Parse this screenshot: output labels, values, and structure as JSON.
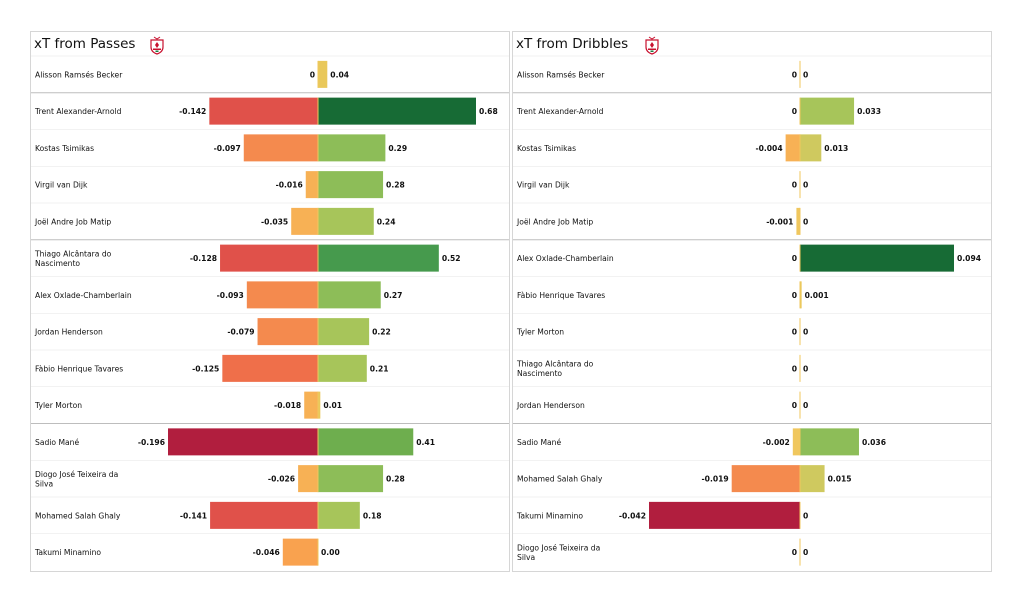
{
  "colors": {
    "neg_scale": [
      "#f0c75e",
      "#f7b155",
      "#f9a24f",
      "#f48a4e",
      "#ef6f4a",
      "#e0514a",
      "#c42a45",
      "#b11e3e"
    ],
    "pos_scale": [
      "#e9c85a",
      "#cfc95f",
      "#a7c55a",
      "#8dbd58",
      "#6eae4e",
      "#469a4d",
      "#2e8b47",
      "#176b35"
    ],
    "separator": "#bdbdbd",
    "row_line": "#e6e6e6"
  },
  "chart_data": [
    {
      "type": "bar",
      "title": "xT from Passes",
      "crest_icon": "liverpool-crest-icon",
      "orientation": "horizontal diverging",
      "neg_max": 0.196,
      "pos_max": 0.68,
      "group_sizes": [
        1,
        4,
        5,
        4
      ],
      "players": [
        {
          "name": "Alisson Ramsés Becker",
          "neg": 0,
          "pos": 0.04,
          "neg_label": "0",
          "pos_label": "0.04"
        },
        {
          "name": "Trent Alexander-Arnold",
          "neg": -0.142,
          "pos": 0.68,
          "neg_label": "-0.142",
          "pos_label": "0.68"
        },
        {
          "name": "Kostas Tsimikas",
          "neg": -0.097,
          "pos": 0.29,
          "neg_label": "-0.097",
          "pos_label": "0.29"
        },
        {
          "name": "Virgil van Dijk",
          "neg": -0.016,
          "pos": 0.28,
          "neg_label": "-0.016",
          "pos_label": "0.28"
        },
        {
          "name": "Joël Andre Job Matip",
          "neg": -0.035,
          "pos": 0.24,
          "neg_label": "-0.035",
          "pos_label": "0.24"
        },
        {
          "name": "Thiago Alcântara do Nascimento",
          "neg": -0.128,
          "pos": 0.52,
          "neg_label": "-0.128",
          "pos_label": "0.52"
        },
        {
          "name": "Alex Oxlade-Chamberlain",
          "neg": -0.093,
          "pos": 0.27,
          "neg_label": "-0.093",
          "pos_label": "0.27"
        },
        {
          "name": "Jordan Henderson",
          "neg": -0.079,
          "pos": 0.22,
          "neg_label": "-0.079",
          "pos_label": "0.22"
        },
        {
          "name": "Fàbio Henrique Tavares",
          "neg": -0.125,
          "pos": 0.21,
          "neg_label": "-0.125",
          "pos_label": "0.21"
        },
        {
          "name": "Tyler Morton",
          "neg": -0.018,
          "pos": 0.01,
          "neg_label": "-0.018",
          "pos_label": "0.01"
        },
        {
          "name": "Sadio Mané",
          "neg": -0.196,
          "pos": 0.41,
          "neg_label": "-0.196",
          "pos_label": "0.41"
        },
        {
          "name": "Diogo José Teixeira da Silva",
          "neg": -0.026,
          "pos": 0.28,
          "neg_label": "-0.026",
          "pos_label": "0.28"
        },
        {
          "name": "Mohamed  Salah Ghaly",
          "neg": -0.141,
          "pos": 0.18,
          "neg_label": "-0.141",
          "pos_label": "0.18"
        },
        {
          "name": "Takumi Minamino",
          "neg": -0.046,
          "pos": 0.0,
          "neg_label": "-0.046",
          "pos_label": "0.00"
        }
      ]
    },
    {
      "type": "bar",
      "title": "xT from Dribbles",
      "crest_icon": "liverpool-crest-icon",
      "orientation": "horizontal diverging",
      "neg_max": 0.042,
      "pos_max": 0.094,
      "group_sizes": [
        1,
        4,
        5,
        4
      ],
      "players": [
        {
          "name": "Alisson Ramsés Becker",
          "neg": 0,
          "pos": 0,
          "neg_label": "0",
          "pos_label": "0"
        },
        {
          "name": "Trent Alexander-Arnold",
          "neg": 0,
          "pos": 0.033,
          "neg_label": "0",
          "pos_label": "0.033"
        },
        {
          "name": "Kostas Tsimikas",
          "neg": -0.004,
          "pos": 0.013,
          "neg_label": "-0.004",
          "pos_label": "0.013"
        },
        {
          "name": "Virgil van Dijk",
          "neg": 0,
          "pos": 0,
          "neg_label": "0",
          "pos_label": "0"
        },
        {
          "name": "Joël Andre Job Matip",
          "neg": -0.001,
          "pos": 0,
          "neg_label": "-0.001",
          "pos_label": "0"
        },
        {
          "name": "Alex Oxlade-Chamberlain",
          "neg": 0,
          "pos": 0.094,
          "neg_label": "0",
          "pos_label": "0.094"
        },
        {
          "name": "Fàbio Henrique Tavares",
          "neg": 0,
          "pos": 0.001,
          "neg_label": "0",
          "pos_label": "0.001"
        },
        {
          "name": "Tyler Morton",
          "neg": 0,
          "pos": 0,
          "neg_label": "0",
          "pos_label": "0"
        },
        {
          "name": "Thiago Alcântara do Nascimento",
          "neg": 0,
          "pos": 0,
          "neg_label": "0",
          "pos_label": "0"
        },
        {
          "name": "Jordan Henderson",
          "neg": 0,
          "pos": 0,
          "neg_label": "0",
          "pos_label": "0"
        },
        {
          "name": "Sadio Mané",
          "neg": -0.002,
          "pos": 0.036,
          "neg_label": "-0.002",
          "pos_label": "0.036"
        },
        {
          "name": "Mohamed  Salah Ghaly",
          "neg": -0.019,
          "pos": 0.015,
          "neg_label": "-0.019",
          "pos_label": "0.015"
        },
        {
          "name": "Takumi Minamino",
          "neg": -0.042,
          "pos": 0,
          "neg_label": "-0.042",
          "pos_label": "0"
        },
        {
          "name": "Diogo José Teixeira da Silva",
          "neg": 0,
          "pos": 0,
          "neg_label": "0",
          "pos_label": "0"
        }
      ]
    }
  ]
}
